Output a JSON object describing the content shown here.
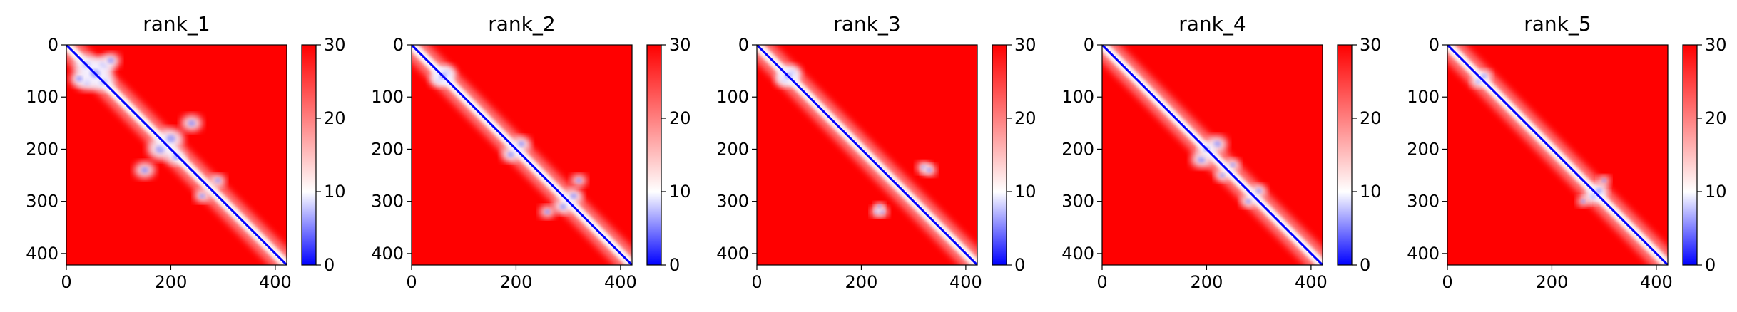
{
  "chart_data": [
    {
      "type": "heatmap",
      "title": "rank_1",
      "xlim": [
        0,
        422
      ],
      "ylim": [
        422,
        0
      ],
      "xticks": [
        0,
        200,
        400
      ],
      "yticks": [
        0,
        100,
        200,
        300,
        400
      ],
      "colorbar": {
        "range": [
          0,
          30
        ],
        "ticks": [
          0,
          10,
          20,
          30
        ],
        "colors": [
          "#0000ff",
          "#ffffff",
          "#ff0000"
        ]
      },
      "blobs": [
        [
          40,
          40,
          25
        ],
        [
          40,
          70,
          22
        ],
        [
          70,
          40,
          22
        ],
        [
          70,
          70,
          22
        ],
        [
          55,
          55,
          28
        ],
        [
          25,
          65,
          18
        ],
        [
          85,
          30,
          18
        ],
        [
          180,
          200,
          25
        ],
        [
          200,
          180,
          25
        ],
        [
          210,
          215,
          18
        ],
        [
          150,
          240,
          20
        ],
        [
          240,
          150,
          20
        ],
        [
          260,
          290,
          15
        ],
        [
          290,
          260,
          15
        ]
      ]
    },
    {
      "type": "heatmap",
      "title": "rank_2",
      "xlim": [
        0,
        422
      ],
      "ylim": [
        422,
        0
      ],
      "xticks": [
        0,
        200,
        400
      ],
      "yticks": [
        0,
        100,
        200,
        300,
        400
      ],
      "colorbar": {
        "range": [
          0,
          30
        ],
        "ticks": [
          0,
          10,
          20,
          30
        ],
        "colors": [
          "#0000ff",
          "#ffffff",
          "#ff0000"
        ]
      },
      "blobs": [
        [
          55,
          65,
          20
        ],
        [
          65,
          55,
          20
        ],
        [
          60,
          60,
          18
        ],
        [
          190,
          210,
          18
        ],
        [
          210,
          190,
          18
        ],
        [
          290,
          310,
          18
        ],
        [
          310,
          290,
          18
        ],
        [
          260,
          320,
          15
        ],
        [
          320,
          260,
          15
        ]
      ]
    },
    {
      "type": "heatmap",
      "title": "rank_3",
      "xlim": [
        0,
        422
      ],
      "ylim": [
        422,
        0
      ],
      "xticks": [
        0,
        200,
        400
      ],
      "yticks": [
        0,
        100,
        200,
        300,
        400
      ],
      "colorbar": {
        "range": [
          0,
          30
        ],
        "ticks": [
          0,
          10,
          20,
          30
        ],
        "colors": [
          "#0000ff",
          "#ffffff",
          "#ff0000"
        ]
      },
      "blobs": [
        [
          55,
          65,
          20
        ],
        [
          65,
          55,
          20
        ],
        [
          60,
          60,
          18
        ],
        [
          230,
          320,
          12
        ],
        [
          240,
          320,
          12
        ],
        [
          320,
          235,
          14
        ],
        [
          330,
          240,
          14
        ],
        [
          235,
          310,
          10
        ]
      ]
    },
    {
      "type": "heatmap",
      "title": "rank_4",
      "xlim": [
        0,
        422
      ],
      "ylim": [
        422,
        0
      ],
      "xticks": [
        0,
        200,
        400
      ],
      "yticks": [
        0,
        100,
        200,
        300,
        400
      ],
      "colorbar": {
        "range": [
          0,
          30
        ],
        "ticks": [
          0,
          10,
          20,
          30
        ],
        "colors": [
          "#0000ff",
          "#ffffff",
          "#ff0000"
        ]
      },
      "blobs": [
        [
          190,
          220,
          20
        ],
        [
          220,
          190,
          20
        ],
        [
          200,
          200,
          16
        ],
        [
          230,
          250,
          14
        ],
        [
          250,
          230,
          14
        ],
        [
          280,
          300,
          15
        ],
        [
          300,
          280,
          15
        ]
      ]
    },
    {
      "type": "heatmap",
      "title": "rank_5",
      "xlim": [
        0,
        422
      ],
      "ylim": [
        422,
        0
      ],
      "xticks": [
        0,
        200,
        400
      ],
      "yticks": [
        0,
        100,
        200,
        300,
        400
      ],
      "colorbar": {
        "range": [
          0,
          30
        ],
        "ticks": [
          0,
          10,
          20,
          30
        ],
        "colors": [
          "#0000ff",
          "#ffffff",
          "#ff0000"
        ]
      },
      "blobs": [
        [
          60,
          70,
          15
        ],
        [
          70,
          60,
          15
        ],
        [
          280,
          290,
          18
        ],
        [
          290,
          280,
          18
        ],
        [
          300,
          260,
          12
        ],
        [
          260,
          300,
          12
        ]
      ]
    }
  ]
}
